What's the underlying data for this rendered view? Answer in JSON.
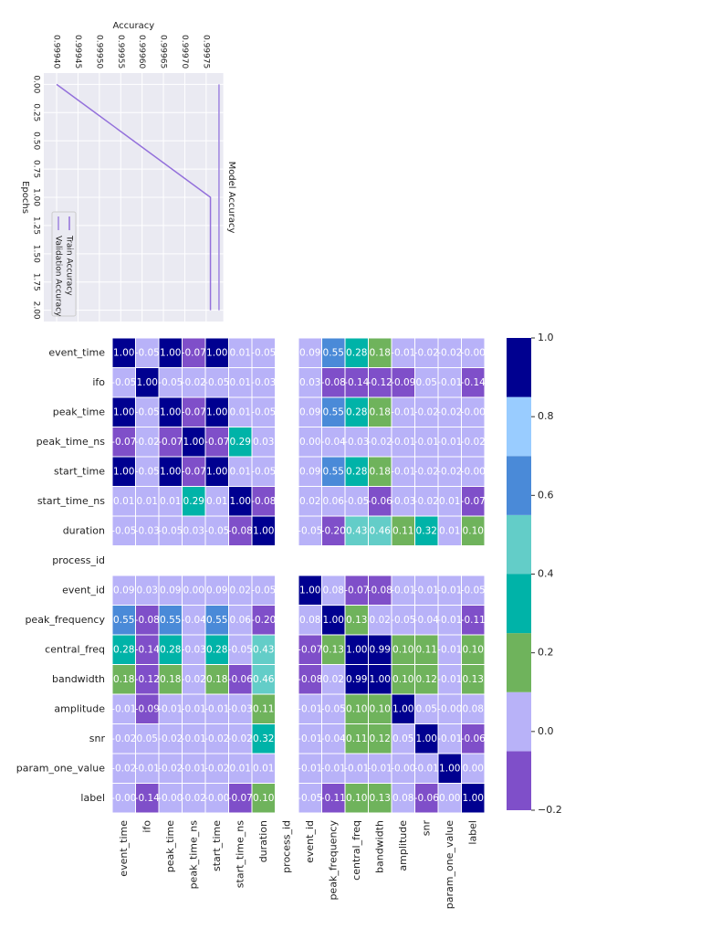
{
  "chart_data": [
    {
      "type": "line",
      "title": "Model Accuracy",
      "xlabel": "Epochs",
      "ylabel": "Accuracy",
      "x": [
        0,
        1,
        2
      ],
      "series": [
        {
          "name": "Train Accuracy",
          "color": "#9370db",
          "values": [
            0.9994,
            0.99976,
            0.99976
          ]
        },
        {
          "name": "Validation Accuracy",
          "color": "#9f85e0",
          "values": [
            0.99978,
            0.99978,
            0.99978
          ]
        }
      ],
      "xlim": [
        -0.1,
        2.1
      ],
      "xticks": [
        {
          "value": 0,
          "label": "0.00"
        },
        {
          "value": 0.25,
          "label": "0.25"
        },
        {
          "value": 0.5,
          "label": "0.50"
        },
        {
          "value": 0.75,
          "label": "0.75"
        },
        {
          "value": 1,
          "label": "1.00"
        },
        {
          "value": 1.25,
          "label": "1.25"
        },
        {
          "value": 1.5,
          "label": "1.50"
        },
        {
          "value": 1.75,
          "label": "1.75"
        },
        {
          "value": 2,
          "label": "2.00"
        }
      ],
      "ylim": [
        0.99937,
        0.99979
      ],
      "yticks": [
        {
          "value": 0.9994,
          "label": "0.99940"
        },
        {
          "value": 0.99945,
          "label": "0.99945"
        },
        {
          "value": 0.9995,
          "label": "0.99950"
        },
        {
          "value": 0.99955,
          "label": "0.99955"
        },
        {
          "value": 0.9996,
          "label": "0.99960"
        },
        {
          "value": 0.99965,
          "label": "0.99965"
        },
        {
          "value": 0.9997,
          "label": "0.99970"
        },
        {
          "value": 0.99975,
          "label": "0.99975"
        }
      ],
      "grid": true
    },
    {
      "type": "heatmap",
      "categories": [
        "event_time",
        "ifo",
        "peak_time",
        "peak_time_ns",
        "start_time",
        "start_time_ns",
        "duration",
        "process_id",
        "event_id",
        "peak_frequency",
        "central_freq",
        "bandwidth",
        "amplitude",
        "snr",
        "param_one_value",
        "label"
      ],
      "z": [
        [
          1,
          -0.05,
          1,
          -0.07,
          1,
          0.01,
          -0.05,
          null,
          0.09,
          0.55,
          0.28,
          0.18,
          -0.01,
          -0.02,
          -0.02,
          -0.0
        ],
        [
          -0.05,
          1,
          -0.05,
          -0.02,
          -0.05,
          0.01,
          -0.03,
          null,
          0.03,
          -0.08,
          -0.14,
          -0.12,
          -0.09,
          0.05,
          -0.01,
          -0.14
        ],
        [
          1,
          -0.05,
          1,
          -0.07,
          1,
          0.01,
          -0.05,
          null,
          0.09,
          0.55,
          0.28,
          0.18,
          -0.01,
          -0.02,
          -0.02,
          -0.0
        ],
        [
          -0.07,
          -0.02,
          -0.07,
          1,
          -0.07,
          0.29,
          0.03,
          null,
          0,
          -0.04,
          -0.03,
          -0.02,
          -0.01,
          -0.01,
          -0.01,
          -0.02
        ],
        [
          1,
          -0.05,
          1,
          -0.07,
          1,
          0.01,
          -0.05,
          null,
          0.09,
          0.55,
          0.28,
          0.18,
          -0.01,
          -0.02,
          -0.02,
          -0.0
        ],
        [
          0.01,
          0.01,
          0.01,
          0.29,
          0.01,
          1,
          -0.08,
          null,
          0.02,
          0.06,
          -0.05,
          -0.06,
          -0.03,
          -0.02,
          0.01,
          -0.07
        ],
        [
          -0.05,
          -0.03,
          -0.05,
          0.03,
          -0.05,
          -0.08,
          1,
          null,
          -0.05,
          -0.2,
          0.43,
          0.46,
          0.11,
          0.32,
          0.01,
          0.1
        ],
        [
          null,
          null,
          null,
          null,
          null,
          null,
          null,
          null,
          null,
          null,
          null,
          null,
          null,
          null,
          null,
          null
        ],
        [
          0.09,
          0.03,
          0.09,
          0,
          0.09,
          0.02,
          -0.05,
          null,
          1,
          0.08,
          -0.07,
          -0.08,
          -0.01,
          -0.01,
          -0.01,
          -0.05
        ],
        [
          0.55,
          -0.08,
          0.55,
          -0.04,
          0.55,
          0.06,
          -0.2,
          null,
          0.08,
          1,
          0.13,
          0.02,
          -0.05,
          -0.04,
          -0.01,
          -0.11
        ],
        [
          0.28,
          -0.14,
          0.28,
          -0.03,
          0.28,
          -0.05,
          0.43,
          null,
          -0.07,
          0.13,
          1,
          0.99,
          0.1,
          0.11,
          -0.01,
          0.1
        ],
        [
          0.18,
          -0.12,
          0.18,
          -0.02,
          0.18,
          -0.06,
          0.46,
          null,
          -0.08,
          0.02,
          0.99,
          1,
          0.1,
          0.12,
          -0.01,
          0.13
        ],
        [
          -0.01,
          -0.09,
          -0.01,
          -0.01,
          -0.01,
          -0.03,
          0.11,
          null,
          -0.01,
          -0.05,
          0.1,
          0.1,
          1,
          0.05,
          -0.0,
          0.08
        ],
        [
          -0.02,
          0.05,
          -0.02,
          -0.01,
          -0.02,
          -0.02,
          0.32,
          null,
          -0.01,
          -0.04,
          0.11,
          0.12,
          0.05,
          1,
          -0.01,
          -0.06
        ],
        [
          -0.02,
          -0.01,
          -0.02,
          -0.01,
          -0.02,
          0.01,
          0.01,
          null,
          -0.01,
          -0.01,
          -0.01,
          -0.01,
          -0.0,
          -0.01,
          1,
          0
        ],
        [
          -0.0,
          -0.14,
          -0.0,
          -0.02,
          -0.0,
          -0.07,
          0.1,
          null,
          -0.05,
          -0.11,
          0.1,
          0.13,
          0.08,
          -0.06,
          0,
          1
        ]
      ],
      "value_labels": [
        [
          "1.00",
          "-0.05",
          "1.00",
          "-0.07",
          "1.00",
          "0.01",
          "-0.05",
          null,
          "0.09",
          "0.55",
          "0.28",
          "0.18",
          "-0.01",
          "-0.02",
          "-0.02",
          "-0.00"
        ],
        [
          "-0.05",
          "1.00",
          "-0.05",
          "-0.02",
          "-0.05",
          "0.01",
          "-0.03",
          null,
          "0.03",
          "-0.08",
          "-0.14",
          "-0.12",
          "-0.09",
          "0.05",
          "-0.01",
          "-0.14"
        ],
        [
          "1.00",
          "-0.05",
          "1.00",
          "-0.07",
          "1.00",
          "0.01",
          "-0.05",
          null,
          "0.09",
          "0.55",
          "0.28",
          "0.18",
          "-0.01",
          "-0.02",
          "-0.02",
          "-0.00"
        ],
        [
          "-0.07",
          "-0.02",
          "-0.07",
          "1.00",
          "-0.07",
          "0.29",
          "0.03",
          null,
          "0.00",
          "-0.04",
          "-0.03",
          "-0.02",
          "-0.01",
          "-0.01",
          "-0.01",
          "-0.02"
        ],
        [
          "1.00",
          "-0.05",
          "1.00",
          "-0.07",
          "1.00",
          "0.01",
          "-0.05",
          null,
          "0.09",
          "0.55",
          "0.28",
          "0.18",
          "-0.01",
          "-0.02",
          "-0.02",
          "-0.00"
        ],
        [
          "0.01",
          "0.01",
          "0.01",
          "0.29",
          "0.01",
          "1.00",
          "-0.08",
          null,
          "0.02",
          "0.06",
          "-0.05",
          "-0.06",
          "-0.03",
          "-0.02",
          "0.01",
          "-0.07"
        ],
        [
          "-0.05",
          "-0.03",
          "-0.05",
          "0.03",
          "-0.05",
          "-0.08",
          "1.00",
          null,
          "-0.05",
          "-0.20",
          "0.43",
          "0.46",
          "0.11",
          "0.32",
          "0.01",
          "0.10"
        ],
        [
          null,
          null,
          null,
          null,
          null,
          null,
          null,
          null,
          null,
          null,
          null,
          null,
          null,
          null,
          null,
          null
        ],
        [
          "0.09",
          "0.03",
          "0.09",
          "0.00",
          "0.09",
          "0.02",
          "-0.05",
          null,
          "1.00",
          "0.08",
          "-0.07",
          "-0.08",
          "-0.01",
          "-0.01",
          "-0.01",
          "-0.05"
        ],
        [
          "0.55",
          "-0.08",
          "0.55",
          "-0.04",
          "0.55",
          "0.06",
          "-0.20",
          null,
          "0.08",
          "1.00",
          "0.13",
          "0.02",
          "-0.05",
          "-0.04",
          "-0.01",
          "-0.11"
        ],
        [
          "0.28",
          "-0.14",
          "0.28",
          "-0.03",
          "0.28",
          "-0.05",
          "0.43",
          null,
          "-0.07",
          "0.13",
          "1.00",
          "0.99",
          "0.10",
          "0.11",
          "-0.01",
          "0.10"
        ],
        [
          "0.18",
          "-0.12",
          "0.18",
          "-0.02",
          "0.18",
          "-0.06",
          "0.46",
          null,
          "-0.08",
          "0.02",
          "0.99",
          "1.00",
          "0.10",
          "0.12",
          "-0.01",
          "0.13"
        ],
        [
          "-0.01",
          "-0.09",
          "-0.01",
          "-0.01",
          "-0.01",
          "-0.03",
          "0.11",
          null,
          "-0.01",
          "-0.05",
          "0.10",
          "0.10",
          "1.00",
          "0.05",
          "-0.00",
          "0.08"
        ],
        [
          "-0.02",
          "0.05",
          "-0.02",
          "-0.01",
          "-0.02",
          "-0.02",
          "0.32",
          null,
          "-0.01",
          "-0.04",
          "0.11",
          "0.12",
          "0.05",
          "1.00",
          "-0.01",
          "-0.06"
        ],
        [
          "-0.02",
          "-0.01",
          "-0.02",
          "-0.01",
          "-0.02",
          "0.01",
          "0.01",
          null,
          "-0.01",
          "-0.01",
          "-0.01",
          "-0.01",
          "-0.00",
          "-0.01",
          "1.00",
          "0.00"
        ],
        [
          "-0.00",
          "-0.14",
          "-0.00",
          "-0.02",
          "-0.00",
          "-0.07",
          "0.10",
          null,
          "-0.05",
          "-0.11",
          "0.10",
          "0.13",
          "0.08",
          "-0.06",
          "0.00",
          "1.00"
        ]
      ],
      "colors": [
        "#7f4fc9",
        "#b8b2f8",
        "#6fb35c",
        "#00b3a8",
        "#63cdc8",
        "#4a8ad8",
        "#99ccff",
        "#000090"
      ],
      "zlim": [
        -0.2,
        1.0
      ],
      "zticks": [
        {
          "value": -0.2,
          "label": "−0.2"
        },
        {
          "value": 0,
          "label": "0.0"
        },
        {
          "value": 0.2,
          "label": "0.2"
        },
        {
          "value": 0.4,
          "label": "0.4"
        },
        {
          "value": 0.6,
          "label": "0.6"
        },
        {
          "value": 0.8,
          "label": "0.8"
        },
        {
          "value": 1.0,
          "label": "1.0"
        }
      ]
    }
  ]
}
